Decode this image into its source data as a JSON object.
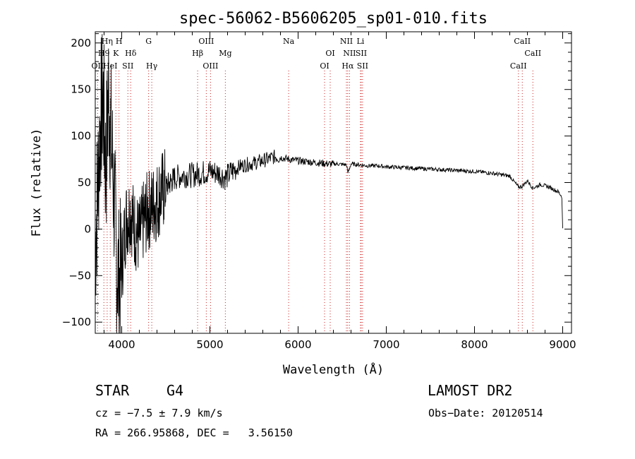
{
  "chart_data": {
    "type": "line",
    "title": "spec-56062-B5606205_sp01-010.fits",
    "xlabel": "Wavelength (Å)",
    "ylabel": "Flux (relative)",
    "xlim": [
      3700,
      9100
    ],
    "ylim": [
      -112,
      212
    ],
    "x_ticks": [
      4000,
      5000,
      6000,
      7000,
      8000,
      9000
    ],
    "y_ticks": [
      -100,
      -50,
      0,
      50,
      100,
      150,
      200
    ],
    "grid": false,
    "series": [
      {
        "color": "#000000",
        "x": [
          3700,
          3760,
          3790,
          3820,
          3850,
          3880,
          3910,
          3940,
          3970,
          4000,
          4050,
          4100,
          4150,
          4200,
          4250,
          4300,
          4350,
          4400,
          4450,
          4500,
          4600,
          4700,
          4800,
          4900,
          5000,
          5100,
          5180,
          5250,
          5350,
          5450,
          5550,
          5650,
          5750,
          5850,
          5950,
          6050,
          6150,
          6250,
          6350,
          6450,
          6550,
          6563,
          6600,
          6700,
          6800,
          6900,
          7000,
          7200,
          7400,
          7600,
          7800,
          8000,
          8200,
          8400,
          8498,
          8542,
          8600,
          8662,
          8750,
          8850,
          8950,
          8990,
          9000
        ],
        "y": [
          -20,
          120,
          140,
          60,
          150,
          100,
          40,
          -30,
          -60,
          -40,
          10,
          20,
          0,
          -10,
          10,
          20,
          25,
          30,
          40,
          45,
          55,
          58,
          58,
          60,
          62,
          60,
          55,
          62,
          68,
          70,
          72,
          75,
          78,
          76,
          74,
          73,
          72,
          71,
          70,
          70,
          69,
          60,
          70,
          69,
          68,
          68,
          67,
          66,
          65,
          64,
          63,
          62,
          60,
          57,
          45,
          46,
          52,
          44,
          48,
          45,
          40,
          35,
          0
        ]
      }
    ],
    "line_marks": [
      {
        "x": 3727,
        "label": "OII",
        "row": 3
      },
      {
        "x": 3798,
        "label": "H9",
        "row": 2
      },
      {
        "x": 3835,
        "label": "Hη",
        "row": 1
      },
      {
        "x": 3870,
        "label": "HeI",
        "row": 3
      },
      {
        "x": 3934,
        "label": "K",
        "row": 2
      },
      {
        "x": 3969,
        "label": "H",
        "row": 1
      },
      {
        "x": 4070,
        "label": "SII",
        "row": 3
      },
      {
        "x": 4102,
        "label": "Hδ",
        "row": 2
      },
      {
        "x": 4305,
        "label": "G",
        "row": 1
      },
      {
        "x": 4341,
        "label": "Hγ",
        "row": 3
      },
      {
        "x": 4861,
        "label": "Hβ",
        "row": 2
      },
      {
        "x": 4959,
        "label": "OIII",
        "row": 1
      },
      {
        "x": 5007,
        "label": "OIII",
        "row": 3
      },
      {
        "x": 5175,
        "label": "Mg",
        "row": 2
      },
      {
        "x": 5893,
        "label": "Na",
        "row": 1
      },
      {
        "x": 6300,
        "label": "OI",
        "row": 3
      },
      {
        "x": 6364,
        "label": "OI",
        "row": 2
      },
      {
        "x": 6548,
        "label": "NII",
        "row": 1
      },
      {
        "x": 6563,
        "label": "Hα",
        "row": 3
      },
      {
        "x": 6583,
        "label": "NII",
        "row": 2
      },
      {
        "x": 6707,
        "label": "Li",
        "row": 1
      },
      {
        "x": 6716,
        "label": "SII",
        "row": 2
      },
      {
        "x": 6731,
        "label": "SII",
        "row": 3
      },
      {
        "x": 8498,
        "label": "CaII",
        "row": 3
      },
      {
        "x": 8542,
        "label": "CaII",
        "row": 1
      },
      {
        "x": 8662,
        "label": "CaII",
        "row": 2
      }
    ]
  },
  "info": {
    "object_class": "STAR",
    "subclass": "G4",
    "survey": "LAMOST DR2",
    "redshift": "cz = −7.5 ± 7.9 km/s",
    "obs_date": "Obs−Date: 20120514",
    "coords": "RA = 266.95868, DEC =   3.56150"
  }
}
